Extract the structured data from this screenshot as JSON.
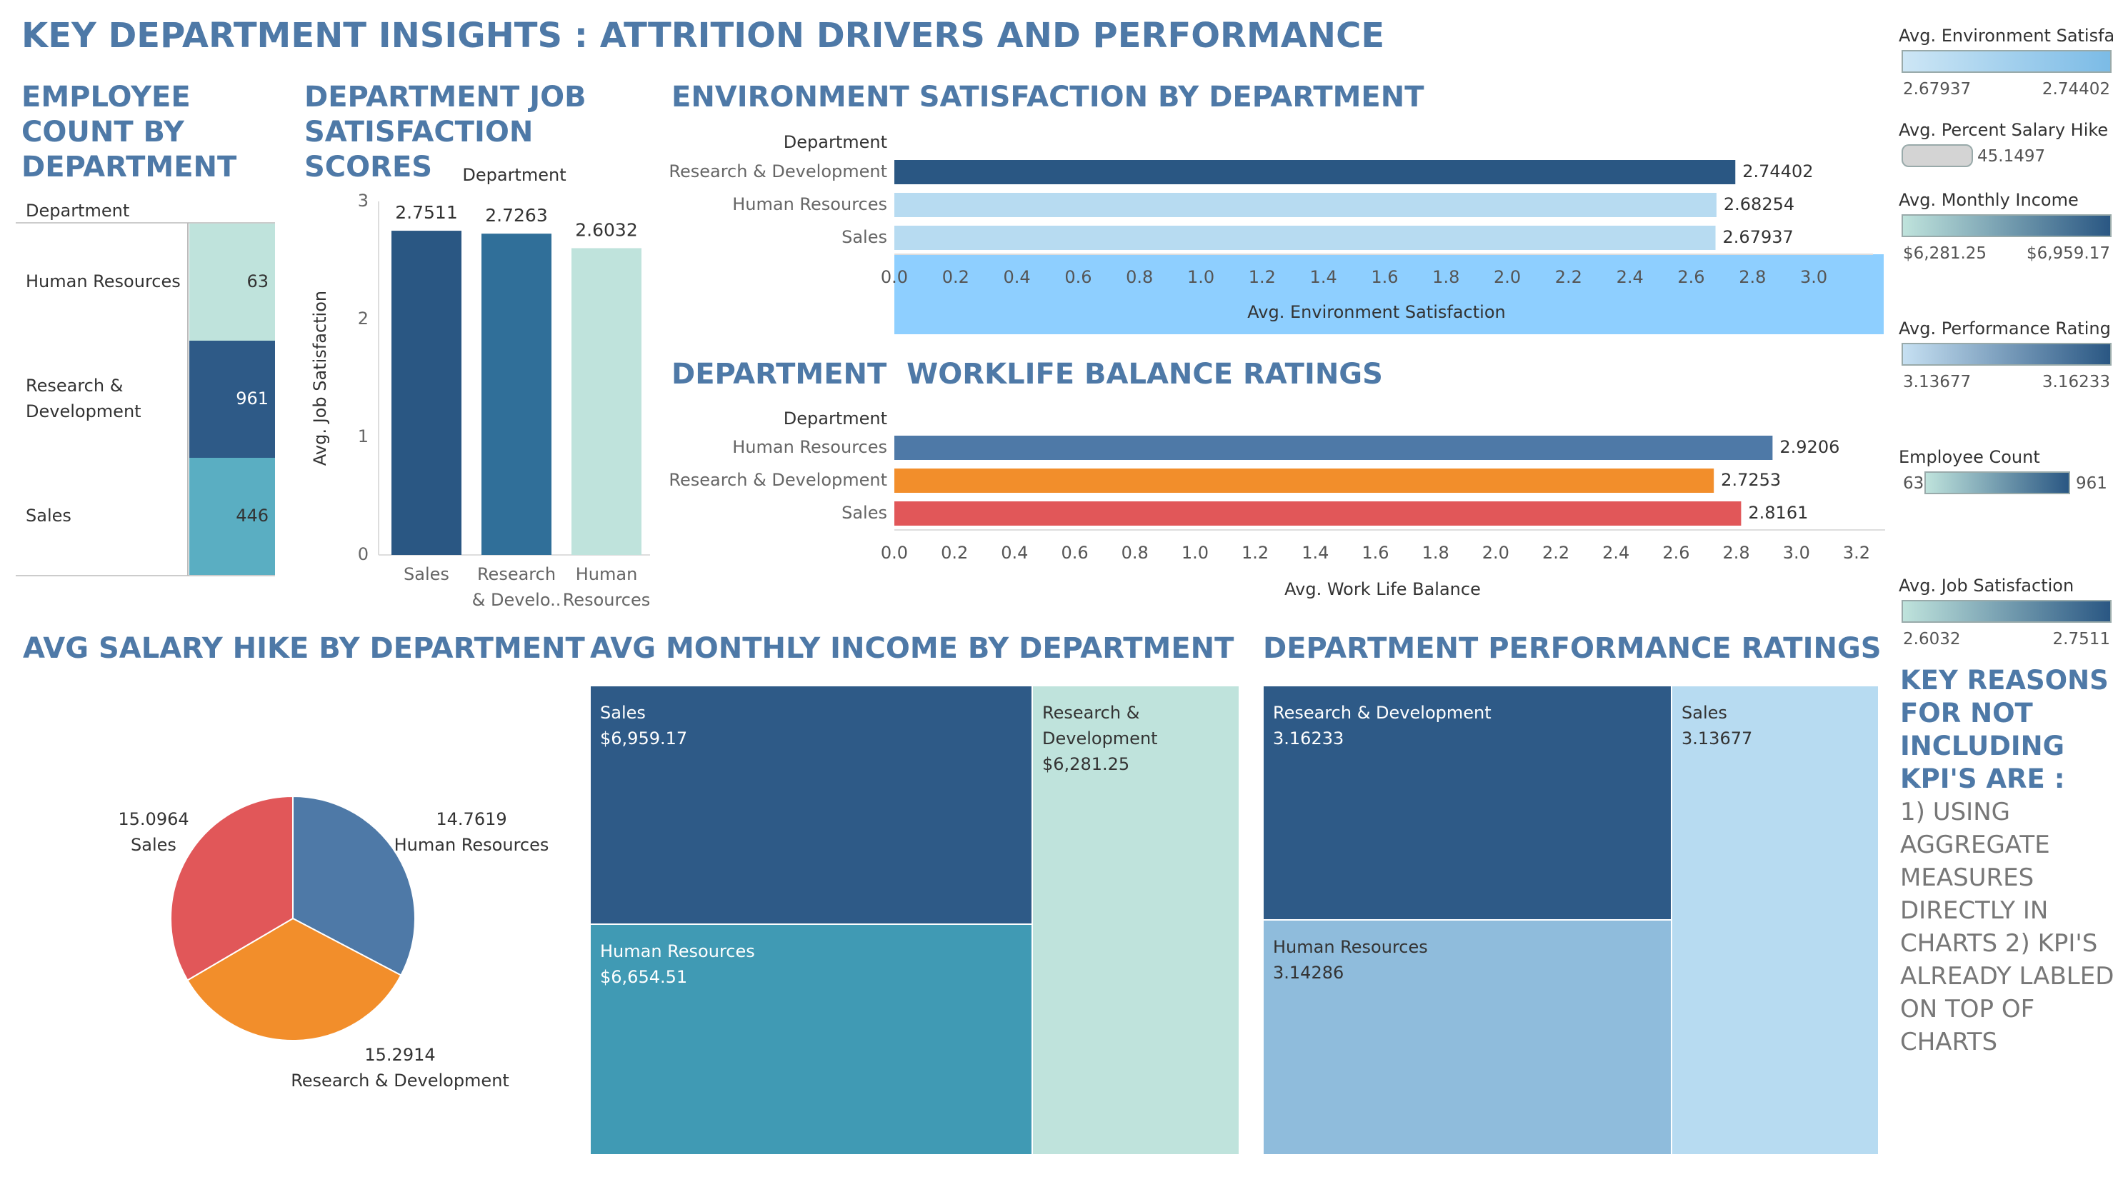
{
  "title": "KEY DEPARTMENT INSIGHTS : ATTRITION DRIVERS AND PERFORMANCE",
  "sections": {
    "employee_count": "EMPLOYEE COUNT BY DEPARTMENT",
    "job_satisfaction": "DEPARTMENT JOB SATISFACTION SCORES",
    "env_satisfaction": "ENVIRONMENT SATISFACTION BY DEPARTMENT",
    "worklife": "DEPARTMENT  WORKLIFE BALANCE RATINGS",
    "salary_hike": "AVG SALARY HIKE BY DEPARTMENT",
    "monthly_income": "AVG MONTHLY INCOME BY DEPARTMENT",
    "performance": "DEPARTMENT PERFORMANCE RATINGS"
  },
  "legends": [
    {
      "title": "Avg. Environment Satisfa..",
      "min": "2.67937",
      "max": "2.74402",
      "from": "#cde6f5",
      "to": "#7bbbe6"
    },
    {
      "title": "Avg. Percent Salary Hike",
      "min": "",
      "max": "45.1497",
      "from": "#d4d4d4",
      "to": "#d4d4d4"
    },
    {
      "title": "Avg. Monthly Income",
      "min": "$6,281.25",
      "max": "$6,959.17",
      "from": "#bfe3dc",
      "to": "#2a5783"
    },
    {
      "title": "Avg. Performance Rating",
      "min": "3.13677",
      "max": "3.16233",
      "from": "#c6e0f2",
      "to": "#2a5783"
    },
    {
      "title": "Employee Count",
      "min": "63",
      "max": "961",
      "from": "#bfe3dc",
      "to": "#2a5783"
    },
    {
      "title": "Avg. Job Satisfaction",
      "min": "2.6032",
      "max": "2.7511",
      "from": "#bfe3dc",
      "to": "#2a5783"
    }
  ],
  "note": {
    "heading": "KEY REASONS FOR NOT INCLUDING KPI'S ARE :",
    "body": "1) USING AGGREGATE MEASURES DIRECTLY IN CHARTS 2) KPI'S ALREADY LABLED ON TOP OF CHARTS"
  },
  "chart_data": [
    {
      "id": "employee_count",
      "type": "table",
      "column_header": "Department",
      "categories": [
        "Human Resources",
        "Research & Development",
        "Sales"
      ],
      "values": [
        63,
        961,
        446
      ],
      "labels": [
        "63",
        "961",
        "446"
      ],
      "colors": [
        "#bfe3dc",
        "#2e5a87",
        "#5aaec2"
      ]
    },
    {
      "id": "job_satisfaction",
      "type": "bar",
      "column_header": "Department",
      "ylabel": "Avg. Job Satisfaction",
      "categories": [
        "Sales",
        "Research\n& Develo..",
        "Human\nResources"
      ],
      "values": [
        2.7511,
        2.7263,
        2.6032
      ],
      "labels": [
        "2.7511",
        "2.7263",
        "2.6032"
      ],
      "colors": [
        "#2a5783",
        "#306f99",
        "#bfe3dc"
      ],
      "ylim": [
        0,
        3
      ],
      "yticks": [
        "0",
        "1",
        "2",
        "3"
      ]
    },
    {
      "id": "env_satisfaction",
      "type": "bar",
      "orientation": "horizontal",
      "row_header": "Department",
      "categories": [
        "Research & Development",
        "Human Resources",
        "Sales"
      ],
      "values": [
        2.74402,
        2.68254,
        2.67937
      ],
      "labels": [
        "2.74402",
        "2.68254",
        "2.67937"
      ],
      "colors": [
        "#2a5783",
        "#b7dbf1",
        "#b7dbf1"
      ],
      "xlabel": "Avg. Environment Satisfaction",
      "xlim": [
        0,
        3.1
      ],
      "xticks": [
        "0.0",
        "0.2",
        "0.4",
        "0.6",
        "0.8",
        "1.0",
        "1.2",
        "1.4",
        "1.6",
        "1.8",
        "2.0",
        "2.2",
        "2.4",
        "2.6",
        "2.8",
        "3.0"
      ]
    },
    {
      "id": "worklife",
      "type": "bar",
      "orientation": "horizontal",
      "row_header": "Department",
      "categories": [
        "Human Resources",
        "Research & Development",
        "Sales"
      ],
      "values": [
        2.9206,
        2.7253,
        2.8161
      ],
      "labels": [
        "2.9206",
        "2.7253",
        "2.8161"
      ],
      "colors": [
        "#4e79a7",
        "#f28e2b",
        "#e15759"
      ],
      "xlabel": "Avg. Work Life Balance",
      "xlim": [
        0,
        3.2
      ],
      "xticks": [
        "0.0",
        "0.2",
        "0.4",
        "0.6",
        "0.8",
        "1.0",
        "1.2",
        "1.4",
        "1.6",
        "1.8",
        "2.0",
        "2.2",
        "2.4",
        "2.6",
        "2.8",
        "3.0",
        "3.2"
      ]
    },
    {
      "id": "salary_hike",
      "type": "pie",
      "slices": [
        {
          "name": "Human Resources",
          "value": 14.7619,
          "label": "14.7619",
          "color": "#4e79a7"
        },
        {
          "name": "Research & Development",
          "value": 15.2914,
          "label": "15.2914",
          "color": "#f28e2b"
        },
        {
          "name": "Sales",
          "value": 15.0964,
          "label": "15.0964",
          "color": "#e15759"
        }
      ]
    },
    {
      "id": "monthly_income",
      "type": "treemap",
      "items": [
        {
          "name": "Sales",
          "value": 6959.17,
          "label": "$6,959.17",
          "color": "#2e5a87"
        },
        {
          "name": "Human Resources",
          "value": 6654.51,
          "label": "$6,654.51",
          "color": "#409ab4"
        },
        {
          "name": "Research &\nDevelopment",
          "value": 6281.25,
          "label": "$6,281.25",
          "color": "#bfe3dc"
        }
      ]
    },
    {
      "id": "performance",
      "type": "treemap",
      "items": [
        {
          "name": "Research & Development",
          "value": 3.16233,
          "label": "3.16233",
          "color": "#2e5a87"
        },
        {
          "name": "Human Resources",
          "value": 3.14286,
          "label": "3.14286",
          "color": "#8fbcdc"
        },
        {
          "name": "Sales",
          "value": 3.13677,
          "label": "3.13677",
          "color": "#b7dbf1"
        }
      ]
    }
  ]
}
